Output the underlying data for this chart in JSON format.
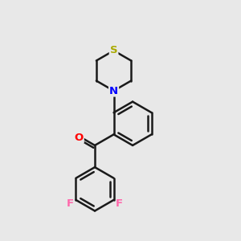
{
  "bg": "#e8e8e8",
  "bond_color": "#1a1a1a",
  "S_color": "#aaaa00",
  "N_color": "#0000ff",
  "O_color": "#ff0000",
  "F_color": "#ff66aa",
  "lw": 1.8,
  "figsize": [
    3.0,
    3.0
  ],
  "dpi": 100,
  "xlim": [
    -0.3,
    1.1
  ],
  "ylim": [
    -1.0,
    0.95
  ]
}
